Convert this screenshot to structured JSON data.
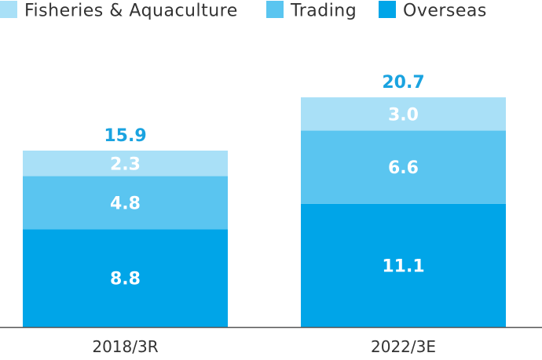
{
  "chart_data": {
    "type": "bar",
    "stacked": true,
    "title": "",
    "xlabel": "",
    "ylabel": "",
    "ylim": [
      0,
      21
    ],
    "categories": [
      "2018/3R",
      "2022/3E"
    ],
    "series": [
      {
        "name": "Overseas",
        "values": [
          8.8,
          11.1
        ],
        "value_labels": [
          "8.8",
          "11.1"
        ],
        "color": "#00a5e8"
      },
      {
        "name": "Trading",
        "values": [
          4.8,
          6.6
        ],
        "value_labels": [
          "4.8",
          "6.6"
        ],
        "color": "#5ac5f0"
      },
      {
        "name": "Fisheries & Aquaculture",
        "values": [
          2.3,
          3.0
        ],
        "value_labels": [
          "2.3",
          "3.0"
        ],
        "color": "#a9e0f7"
      }
    ],
    "totals": [
      15.9,
      20.7
    ],
    "total_labels": [
      "15.9",
      "20.7"
    ],
    "total_color": "#1aa3e0",
    "legend": {
      "placement": "top-left",
      "order": [
        "Fisheries & Aquaculture",
        "Trading",
        "Overseas"
      ]
    }
  }
}
